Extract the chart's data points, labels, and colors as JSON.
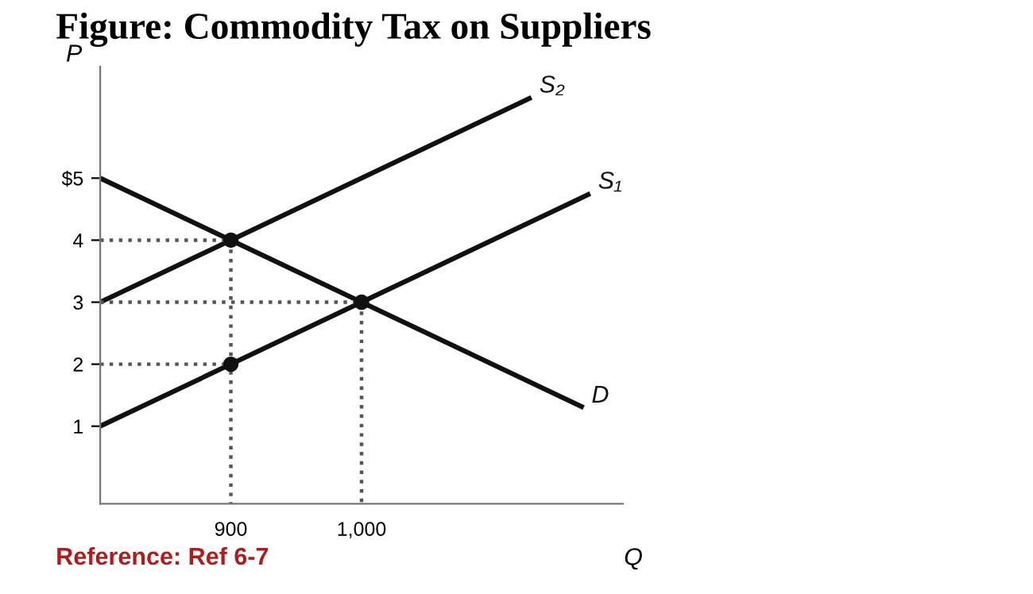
{
  "chart_data": {
    "type": "line",
    "title": "Figure: Commodity Tax on Suppliers",
    "xlabel": "Q",
    "ylabel": "P",
    "annotations": [
      "Reference: Ref 6-7"
    ],
    "xlim": [
      800,
      1200
    ],
    "xticks": [
      900,
      {
        "value": 1000,
        "label": "1,000"
      }
    ],
    "ylim": [
      -0.25,
      6.8
    ],
    "yticks": [
      1,
      2,
      3,
      4,
      {
        "value": 5,
        "label": "$5"
      }
    ],
    "grid": false,
    "legend": false,
    "series": [
      {
        "name": "S₂",
        "color": "#111111",
        "line_style": "solid",
        "marker": "none",
        "x": [
          800,
          1130
        ],
        "values": [
          3,
          6.3
        ]
      },
      {
        "name": "S₁",
        "color": "#111111",
        "line_style": "solid",
        "marker": "none",
        "x": [
          800,
          1175
        ],
        "values": [
          1,
          4.75
        ]
      },
      {
        "name": "D",
        "color": "#111111",
        "line_style": "solid",
        "marker": "none",
        "x": [
          800,
          1170
        ],
        "values": [
          5,
          1.3
        ]
      },
      {
        "color": "#555555",
        "line_style": "dotted",
        "marker": "none",
        "x": [
          800,
          900
        ],
        "values": [
          4,
          4
        ]
      },
      {
        "color": "#555555",
        "line_style": "dotted",
        "marker": "none",
        "x": [
          900,
          900
        ],
        "values": [
          4,
          -0.25
        ]
      },
      {
        "color": "#555555",
        "line_style": "dotted",
        "marker": "none",
        "x": [
          800,
          1000
        ],
        "values": [
          3,
          3
        ]
      },
      {
        "color": "#555555",
        "line_style": "dotted",
        "marker": "none",
        "x": [
          1000,
          1000
        ],
        "values": [
          3,
          -0.25
        ]
      },
      {
        "color": "#555555",
        "line_style": "dotted",
        "marker": "none",
        "x": [
          800,
          900
        ],
        "values": [
          2,
          2
        ]
      },
      {
        "type": "scatter",
        "color": "#111111",
        "marker": "circle",
        "x": [
          900,
          1000,
          900
        ],
        "values": [
          4,
          3,
          2
        ]
      }
    ]
  }
}
